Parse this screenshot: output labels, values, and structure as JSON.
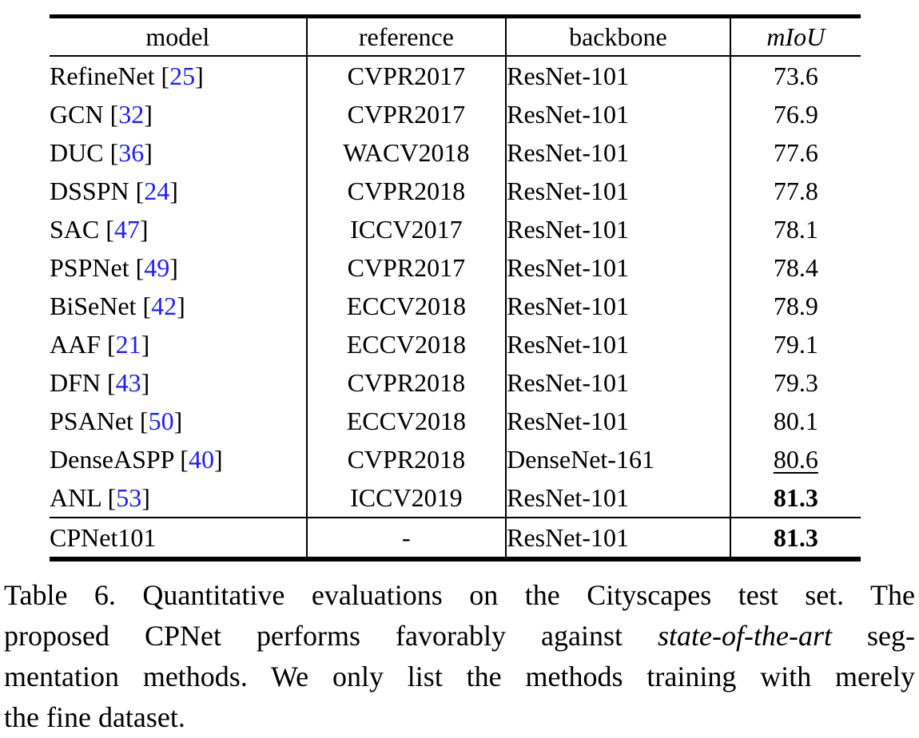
{
  "colors": {
    "text": "#000000",
    "citation": "#1e1eff",
    "rule": "#000000"
  },
  "table": {
    "headers": {
      "model": "model",
      "reference": "reference",
      "backbone": "backbone",
      "miou": "mIoU"
    },
    "rows": [
      {
        "model_pre": "RefineNet [",
        "cite": "25",
        "model_post": "]",
        "reference": "CVPR2017",
        "backbone": "ResNet-101",
        "miou": "73.6",
        "miou_style": "normal",
        "final": false
      },
      {
        "model_pre": "GCN [",
        "cite": "32",
        "model_post": "]",
        "reference": "CVPR2017",
        "backbone": "ResNet-101",
        "miou": "76.9",
        "miou_style": "normal",
        "final": false
      },
      {
        "model_pre": "DUC [",
        "cite": "36",
        "model_post": "]",
        "reference": "WACV2018",
        "backbone": "ResNet-101",
        "miou": "77.6",
        "miou_style": "normal",
        "final": false
      },
      {
        "model_pre": "DSSPN [",
        "cite": "24",
        "model_post": "]",
        "reference": "CVPR2018",
        "backbone": "ResNet-101",
        "miou": "77.8",
        "miou_style": "normal",
        "final": false
      },
      {
        "model_pre": "SAC [",
        "cite": "47",
        "model_post": "]",
        "reference": "ICCV2017",
        "backbone": "ResNet-101",
        "miou": "78.1",
        "miou_style": "normal",
        "final": false
      },
      {
        "model_pre": "PSPNet [",
        "cite": "49",
        "model_post": "]",
        "reference": "CVPR2017",
        "backbone": "ResNet-101",
        "miou": "78.4",
        "miou_style": "normal",
        "final": false
      },
      {
        "model_pre": "BiSeNet [",
        "cite": "42",
        "model_post": "]",
        "reference": "ECCV2018",
        "backbone": "ResNet-101",
        "miou": "78.9",
        "miou_style": "normal",
        "final": false
      },
      {
        "model_pre": "AAF [",
        "cite": "21",
        "model_post": "]",
        "reference": "ECCV2018",
        "backbone": "ResNet-101",
        "miou": "79.1",
        "miou_style": "normal",
        "final": false
      },
      {
        "model_pre": "DFN [",
        "cite": "43",
        "model_post": "]",
        "reference": "CVPR2018",
        "backbone": "ResNet-101",
        "miou": "79.3",
        "miou_style": "normal",
        "final": false
      },
      {
        "model_pre": "PSANet [",
        "cite": "50",
        "model_post": "]",
        "reference": "ECCV2018",
        "backbone": "ResNet-101",
        "miou": "80.1",
        "miou_style": "normal",
        "final": false
      },
      {
        "model_pre": "DenseASPP [",
        "cite": "40",
        "model_post": "]",
        "reference": "CVPR2018",
        "backbone": "DenseNet-161",
        "miou": "80.6",
        "miou_style": "underline",
        "final": false
      },
      {
        "model_pre": "ANL [",
        "cite": "53",
        "model_post": "]",
        "reference": "ICCV2019",
        "backbone": "ResNet-101",
        "miou": "81.3",
        "miou_style": "bold",
        "final": false
      },
      {
        "model_pre": "CPNet101",
        "cite": "",
        "model_post": "",
        "reference": "-",
        "backbone": "ResNet-101",
        "miou": "81.3",
        "miou_style": "bold",
        "final": true
      }
    ]
  },
  "caption": {
    "lines": [
      [
        {
          "text": "Table 6.  Quantitative evaluations on the Cityscapes test set. The"
        }
      ],
      [
        {
          "text": "proposed CPNet performs favorably against "
        },
        {
          "text": "state-of-the-art",
          "italic": true
        },
        {
          "text": " seg-"
        }
      ],
      [
        {
          "text": "mentation methods. We only list the methods training with merely"
        }
      ],
      [
        {
          "text": "the fine dataset."
        }
      ]
    ]
  }
}
